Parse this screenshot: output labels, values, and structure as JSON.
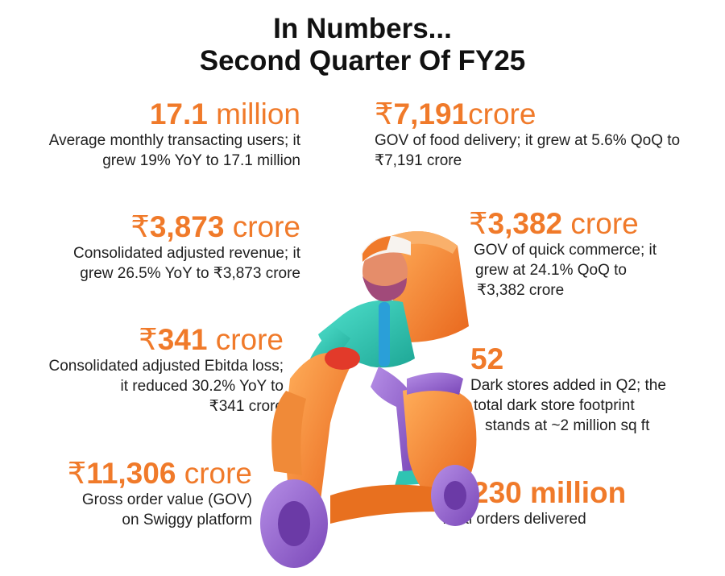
{
  "header": {
    "line1": "In Numbers...",
    "line2": "Second Quarter Of FY25"
  },
  "stats": {
    "users": {
      "value": "17.1",
      "unit": " million",
      "desc1": "Average monthly transacting users; it",
      "desc2": "grew 19% YoY to 17.1 million"
    },
    "food_gov": {
      "rupee": "₹",
      "value": "7,191",
      "unit": "crore",
      "desc1": "GOV of food delivery; it grew at 5.6% QoQ to",
      "desc2": "₹7,191 crore"
    },
    "revenue": {
      "rupee": "₹",
      "value": "3,873",
      "unit": " crore",
      "desc1": "Consolidated adjusted revenue; it",
      "desc2": "grew 26.5% YoY to ₹3,873 crore"
    },
    "qc_gov": {
      "rupee": "₹",
      "value": "3,382",
      "unit": " crore",
      "desc1": "GOV of quick commerce; it",
      "desc2": "grew at 24.1% QoQ to",
      "desc3": "₹3,382 crore"
    },
    "ebitda": {
      "rupee": "₹",
      "value": "341",
      "unit": " crore",
      "desc1": "Consolidated adjusted Ebitda loss;",
      "desc2": "it reduced 30.2% YoY to",
      "desc3": "₹341 crore"
    },
    "dark_stores": {
      "value": "52",
      "desc1": "Dark stores added in Q2; the",
      "desc2": "total dark store footprint",
      "desc3": "stands at ~2 million sq ft"
    },
    "gov": {
      "rupee": "₹",
      "value": "11,306",
      "unit": " crore",
      "desc1": "Gross order value (GOV)",
      "desc2": "on Swiggy platform"
    },
    "orders": {
      "value": "230 million",
      "desc1": "Total orders delivered"
    }
  },
  "colors": {
    "accent": "#f07a2a",
    "text": "#1f1f1f",
    "scooter": "#f58a2e",
    "tyre": "#8d5cc4",
    "jacket": "#2fc4b2"
  },
  "illustration": {
    "name": "delivery-rider-on-scooter"
  }
}
